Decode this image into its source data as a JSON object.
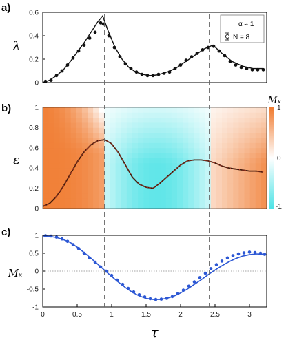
{
  "colors": {
    "line": "#111111",
    "points": "#111111",
    "blue": "#2c57d4",
    "orange": "#f07a2e",
    "cyan": "#4fe3e6",
    "dashed": "#666666",
    "zero": "#888888"
  },
  "chart_data": [
    {
      "panel": "a)",
      "type": "line",
      "ylabel": "λ",
      "xlim": [
        0,
        3.25
      ],
      "ylim": [
        0,
        0.6
      ],
      "yticks": [
        0,
        0.2,
        0.4,
        0.6
      ],
      "legend": {
        "position": "top-right",
        "entries": [
          "α ≈ 1",
          "N = 8"
        ]
      },
      "series": [
        {
          "kind": "line",
          "x": [
            0,
            0.1,
            0.2,
            0.3,
            0.4,
            0.5,
            0.6,
            0.7,
            0.8,
            0.87,
            0.95,
            1.05,
            1.15,
            1.25,
            1.35,
            1.45,
            1.55,
            1.65,
            1.75,
            1.85,
            1.95,
            2.05,
            2.15,
            2.25,
            2.35,
            2.47,
            2.6,
            2.75,
            2.9,
            3.05,
            3.2
          ],
          "y": [
            0,
            0.02,
            0.06,
            0.11,
            0.18,
            0.26,
            0.34,
            0.43,
            0.52,
            0.57,
            0.44,
            0.3,
            0.2,
            0.13,
            0.09,
            0.07,
            0.06,
            0.065,
            0.08,
            0.1,
            0.13,
            0.17,
            0.21,
            0.25,
            0.29,
            0.32,
            0.25,
            0.18,
            0.14,
            0.12,
            0.12
          ]
        },
        {
          "kind": "scatter",
          "x": [
            0.04,
            0.12,
            0.2,
            0.28,
            0.36,
            0.44,
            0.52,
            0.6,
            0.68,
            0.76,
            0.84,
            0.88,
            0.96,
            1.04,
            1.12,
            1.2,
            1.28,
            1.36,
            1.44,
            1.52,
            1.6,
            1.68,
            1.76,
            1.84,
            1.92,
            2.0,
            2.08,
            2.16,
            2.24,
            2.32,
            2.4,
            2.48,
            2.56,
            2.64,
            2.72,
            2.8,
            2.88,
            2.96,
            3.04,
            3.12,
            3.2
          ],
          "y": [
            0.01,
            0.02,
            0.06,
            0.1,
            0.15,
            0.21,
            0.27,
            0.32,
            0.38,
            0.43,
            0.51,
            0.5,
            0.4,
            0.3,
            0.22,
            0.16,
            0.12,
            0.09,
            0.07,
            0.06,
            0.06,
            0.07,
            0.08,
            0.09,
            0.12,
            0.15,
            0.19,
            0.22,
            0.25,
            0.28,
            0.3,
            0.31,
            0.27,
            0.23,
            0.18,
            0.15,
            0.13,
            0.12,
            0.11,
            0.11,
            0.11
          ]
        }
      ]
    },
    {
      "panel": "b)",
      "type": "heatmap",
      "ylabel": "ε",
      "xlim": [
        0,
        3.25
      ],
      "ylim": [
        0,
        1
      ],
      "yticks": [
        0,
        0.2,
        0.4,
        0.6,
        0.8,
        1
      ],
      "colorbar": {
        "label": "Mₓ",
        "ticks": [
          1,
          0,
          -1
        ],
        "range": [
          -1,
          1
        ]
      },
      "boundaries": [
        0.9,
        2.42
      ],
      "curve": {
        "x": [
          0,
          0.1,
          0.2,
          0.3,
          0.4,
          0.5,
          0.6,
          0.7,
          0.8,
          0.9,
          1.0,
          1.1,
          1.2,
          1.3,
          1.4,
          1.5,
          1.6,
          1.7,
          1.8,
          1.9,
          2.0,
          2.1,
          2.2,
          2.3,
          2.4,
          2.5,
          2.6,
          2.7,
          2.8,
          2.9,
          3.0,
          3.1,
          3.2
        ],
        "y": [
          0.02,
          0.05,
          0.12,
          0.22,
          0.34,
          0.46,
          0.56,
          0.63,
          0.67,
          0.68,
          0.64,
          0.55,
          0.43,
          0.31,
          0.24,
          0.21,
          0.2,
          0.25,
          0.31,
          0.37,
          0.43,
          0.47,
          0.48,
          0.48,
          0.47,
          0.45,
          0.42,
          0.4,
          0.39,
          0.38,
          0.37,
          0.37,
          0.36
        ]
      }
    },
    {
      "panel": "c)",
      "type": "line",
      "ylabel": "Mₓ",
      "xlabel": "τ",
      "xlim": [
        0,
        3.25
      ],
      "ylim": [
        -1,
        1
      ],
      "xticks": [
        0,
        0.5,
        1,
        1.5,
        2,
        2.5,
        3
      ],
      "yticks": [
        1,
        0.5,
        0,
        -0.5,
        -1
      ],
      "series": [
        {
          "kind": "line",
          "x": [
            0,
            0.1,
            0.2,
            0.3,
            0.4,
            0.5,
            0.6,
            0.7,
            0.8,
            0.9,
            1.0,
            1.1,
            1.2,
            1.3,
            1.4,
            1.5,
            1.6,
            1.7,
            1.8,
            1.9,
            2.0,
            2.1,
            2.2,
            2.3,
            2.4,
            2.5,
            2.6,
            2.7,
            2.8,
            2.9,
            3.0,
            3.1,
            3.2
          ],
          "y": [
            0.98,
            0.97,
            0.94,
            0.88,
            0.8,
            0.67,
            0.52,
            0.36,
            0.19,
            0.02,
            -0.15,
            -0.31,
            -0.46,
            -0.59,
            -0.69,
            -0.76,
            -0.79,
            -0.79,
            -0.76,
            -0.7,
            -0.61,
            -0.5,
            -0.37,
            -0.24,
            -0.1,
            0.03,
            0.15,
            0.26,
            0.35,
            0.42,
            0.46,
            0.48,
            0.47
          ]
        },
        {
          "kind": "scatter",
          "x": [
            0.04,
            0.12,
            0.2,
            0.28,
            0.36,
            0.44,
            0.52,
            0.6,
            0.68,
            0.76,
            0.84,
            0.92,
            1.0,
            1.08,
            1.16,
            1.24,
            1.32,
            1.4,
            1.48,
            1.56,
            1.64,
            1.72,
            1.8,
            1.88,
            1.96,
            2.04,
            2.12,
            2.2,
            2.28,
            2.36,
            2.44,
            2.52,
            2.6,
            2.68,
            2.76,
            2.84,
            2.92,
            3.0,
            3.08,
            3.16,
            3.22
          ],
          "y": [
            0.99,
            0.98,
            0.95,
            0.9,
            0.83,
            0.74,
            0.63,
            0.5,
            0.37,
            0.25,
            0.12,
            0.0,
            -0.12,
            -0.25,
            -0.37,
            -0.48,
            -0.58,
            -0.66,
            -0.72,
            -0.77,
            -0.79,
            -0.78,
            -0.76,
            -0.71,
            -0.63,
            -0.53,
            -0.42,
            -0.3,
            -0.18,
            -0.06,
            0.07,
            0.18,
            0.28,
            0.37,
            0.43,
            0.48,
            0.51,
            0.53,
            0.52,
            0.5,
            0.47
          ]
        }
      ]
    }
  ]
}
